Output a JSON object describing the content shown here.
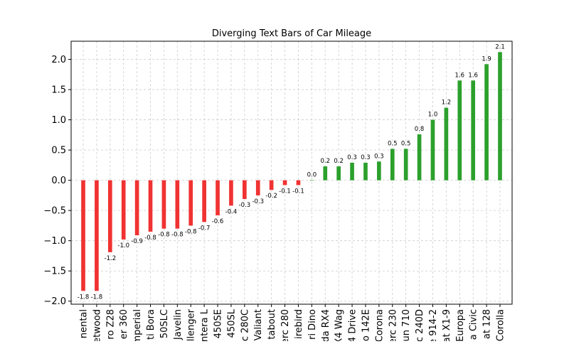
{
  "chart_data": {
    "type": "bar",
    "title": "Diverging Text Bars of Car Mileage",
    "xlabel": "",
    "ylabel": "",
    "ylim": [
      -2.05,
      2.3
    ],
    "yticks": [
      -2.0,
      -1.5,
      -1.0,
      -0.5,
      0.0,
      0.5,
      1.0,
      1.5,
      2.0
    ],
    "ytick_labels": [
      "−2.0",
      "−1.5",
      "−1.0",
      "−0.5",
      "0.0",
      "0.5",
      "1.0",
      "1.5",
      "2.0"
    ],
    "grid": true,
    "positive_color": "#2ca02c",
    "negative_color": "#f03232",
    "categories": [
      "nental",
      "etwood",
      "ro Z28",
      "er 360",
      "mperial",
      "ti Bora",
      "50SLC",
      "Javelin",
      "llenger",
      "ntera L",
      "450SE",
      "450SL",
      "c 280C",
      "Valiant",
      "tabout",
      "erc 280",
      "irebird",
      "ri Dino",
      "da RX4",
      "X4 Wag",
      "4 Drive",
      "o 142E",
      "Corona",
      "erc 230",
      "un 710",
      "c 240D",
      "e 914-2",
      "at X1-9",
      "Europa",
      "a Civic",
      "at 128",
      "Corolla"
    ],
    "values": [
      -1.83,
      -1.83,
      -1.19,
      -0.98,
      -0.91,
      -0.85,
      -0.8,
      -0.8,
      -0.75,
      -0.69,
      -0.58,
      -0.42,
      -0.31,
      -0.25,
      -0.16,
      -0.08,
      -0.08,
      0.0,
      0.23,
      0.23,
      0.29,
      0.29,
      0.31,
      0.52,
      0.52,
      0.76,
      1.0,
      1.2,
      1.65,
      1.65,
      1.92,
      2.12
    ],
    "data_labels": [
      "-1.8",
      "-1.8",
      "-1.2",
      "-1.0",
      "-0.9",
      "-0.8",
      "-0.8",
      "-0.8",
      "-0.8",
      "-0.7",
      "-0.6",
      "-0.4",
      "-0.3",
      "-0.3",
      "-0.2",
      "-0.1",
      "-0.1",
      "0.0",
      "0.2",
      "0.2",
      "0.3",
      "0.3",
      "0.3",
      "0.5",
      "0.5",
      "0.8",
      "1.0",
      "1.2",
      "1.6",
      "1.6",
      "1.9",
      "2.1"
    ]
  }
}
